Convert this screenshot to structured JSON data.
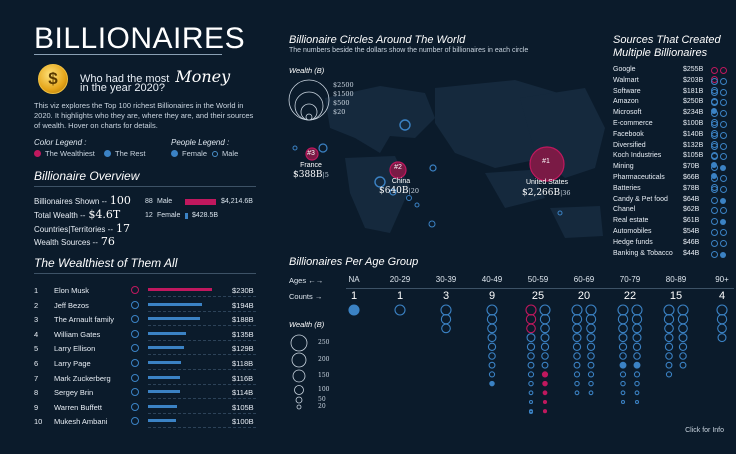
{
  "header": {
    "title": "BILLIONAIRES",
    "coin_symbol": "$",
    "question_line1": "Who had the most",
    "question_money": "Money",
    "question_line2": "in the year 2020?",
    "intro": "This viz explores the Top 100 richest Billionaires in the World in 2020. It highlights who they are, where they are, and their sources of wealth. Hover on charts for details."
  },
  "color_legend": {
    "title": "Color Legend :",
    "items": [
      {
        "label": "The Wealthiest",
        "color": "#c0185e"
      },
      {
        "label": "The Rest",
        "color": "#3b82c4"
      }
    ]
  },
  "people_legend": {
    "title": "People Legend :",
    "items": [
      {
        "label": "Female",
        "icon": "filled-dot-icon"
      },
      {
        "label": "Male",
        "icon": "ring-icon"
      }
    ]
  },
  "overview": {
    "title": "Billionaire Overview",
    "billionaires_label": "Billionaires Shown --",
    "billionaires_value": "100",
    "wealth_label": "Total Wealth --",
    "wealth_value": "$4.6T",
    "countries_label": "Countries|Territories --",
    "countries_value": "17",
    "sources_label": "Wealth Sources --",
    "sources_value": "76",
    "gender": [
      {
        "count": "88",
        "label": "Male",
        "value": "$4,214.6B",
        "share": 0.908,
        "color": "#c0185e"
      },
      {
        "count": "12",
        "label": "Female",
        "value": "$428.5B",
        "share": 0.092,
        "color": "#3b82c4"
      }
    ]
  },
  "wealthiest": {
    "title": "The Wealthiest of Them All",
    "rows": [
      {
        "rank": "1",
        "name": "Elon Musk",
        "value": "$230B",
        "amount": 230,
        "top": true
      },
      {
        "rank": "2",
        "name": "Jeff Bezos",
        "value": "$194B",
        "amount": 194,
        "top": false
      },
      {
        "rank": "3",
        "name": "The Arnault family",
        "value": "$188B",
        "amount": 188,
        "top": false
      },
      {
        "rank": "4",
        "name": "William Gates",
        "value": "$135B",
        "amount": 135,
        "top": false
      },
      {
        "rank": "5",
        "name": "Larry Ellison",
        "value": "$129B",
        "amount": 129,
        "top": false
      },
      {
        "rank": "6",
        "name": "Larry Page",
        "value": "$118B",
        "amount": 118,
        "top": false
      },
      {
        "rank": "7",
        "name": "Mark Zuckerberg",
        "value": "$116B",
        "amount": 116,
        "top": false
      },
      {
        "rank": "8",
        "name": "Sergey Brin",
        "value": "$114B",
        "amount": 114,
        "top": false
      },
      {
        "rank": "9",
        "name": "Warren Buffett",
        "value": "$105B",
        "amount": 105,
        "top": false
      },
      {
        "rank": "10",
        "name": "Mukesh Ambani",
        "value": "$100B",
        "amount": 100,
        "top": false
      }
    ]
  },
  "map": {
    "title": "Billionaire Circles Around The World",
    "subtitle": "The numbers beside the dollars show the number of billionaires in each circle",
    "wealth_legend_title": "Wealth (B)",
    "wealth_legend": [
      "$2500",
      "$1500",
      "$500",
      "$20"
    ],
    "locations": [
      {
        "badge": "#1",
        "country": "United States",
        "value": "$2,266B",
        "count": "|36"
      },
      {
        "badge": "#2",
        "country": "China",
        "value": "$640B",
        "count": "|20"
      },
      {
        "badge": "#3",
        "country": "France",
        "value": "$388B",
        "count": "|5"
      }
    ]
  },
  "sources": {
    "title_line1": "Sources That Created",
    "title_line2": "Multiple Billionaires",
    "rows": [
      {
        "name": "Google",
        "value": "$255B",
        "dots": "mmm"
      },
      {
        "name": "Walmart",
        "value": "$203B",
        "dots": "rrr"
      },
      {
        "name": "Software",
        "value": "$181B",
        "dots": "rrr"
      },
      {
        "name": "Amazon",
        "value": "$250B",
        "dots": "rrF"
      },
      {
        "name": "Microsoft",
        "value": "$234B",
        "dots": "rrr"
      },
      {
        "name": "E-commerce",
        "value": "$100B",
        "dots": "rrr"
      },
      {
        "name": "Facebook",
        "value": "$140B",
        "dots": "rrr"
      },
      {
        "name": "Diversified",
        "value": "$132B",
        "dots": "rrr"
      },
      {
        "name": "Koch Industries",
        "value": "$105B",
        "dots": "rrF"
      },
      {
        "name": "Mining",
        "value": "$70B",
        "dots": "rFF"
      },
      {
        "name": "Pharmaceuticals",
        "value": "$66B",
        "dots": "rrr"
      },
      {
        "name": "Batteries",
        "value": "$78B",
        "dots": "rr"
      },
      {
        "name": "Candy & Pet food",
        "value": "$64B",
        "dots": "rF"
      },
      {
        "name": "Chanel",
        "value": "$62B",
        "dots": "rr"
      },
      {
        "name": "Real estate",
        "value": "$61B",
        "dots": "rF"
      },
      {
        "name": "Automobiles",
        "value": "$54B",
        "dots": "rr"
      },
      {
        "name": "Hedge funds",
        "value": "$46B",
        "dots": "rr"
      },
      {
        "name": "Banking & Tobacco",
        "value": "$44B",
        "dots": "rF"
      }
    ]
  },
  "age_groups": {
    "title": "Billionaires Per Age Group",
    "ages_label": "Ages",
    "counts_label": "Counts",
    "wealth_legend_title": "Wealth (B)",
    "wealth_legend": [
      "250",
      "200",
      "150",
      "100",
      "50",
      "20"
    ],
    "groups": [
      {
        "label": "NA",
        "count": "1"
      },
      {
        "label": "20-29",
        "count": "1"
      },
      {
        "label": "30-39",
        "count": "3"
      },
      {
        "label": "40-49",
        "count": "9"
      },
      {
        "label": "50-59",
        "count": "25"
      },
      {
        "label": "60-69",
        "count": "20"
      },
      {
        "label": "70-79",
        "count": "22"
      },
      {
        "label": "80-89",
        "count": "15"
      },
      {
        "label": "90+",
        "count": "4"
      }
    ]
  },
  "footer": {
    "info": "Click for Info"
  },
  "colors": {
    "wealthiest": "#c0185e",
    "rest": "#3b82c4",
    "background": "#0b1b2b"
  }
}
